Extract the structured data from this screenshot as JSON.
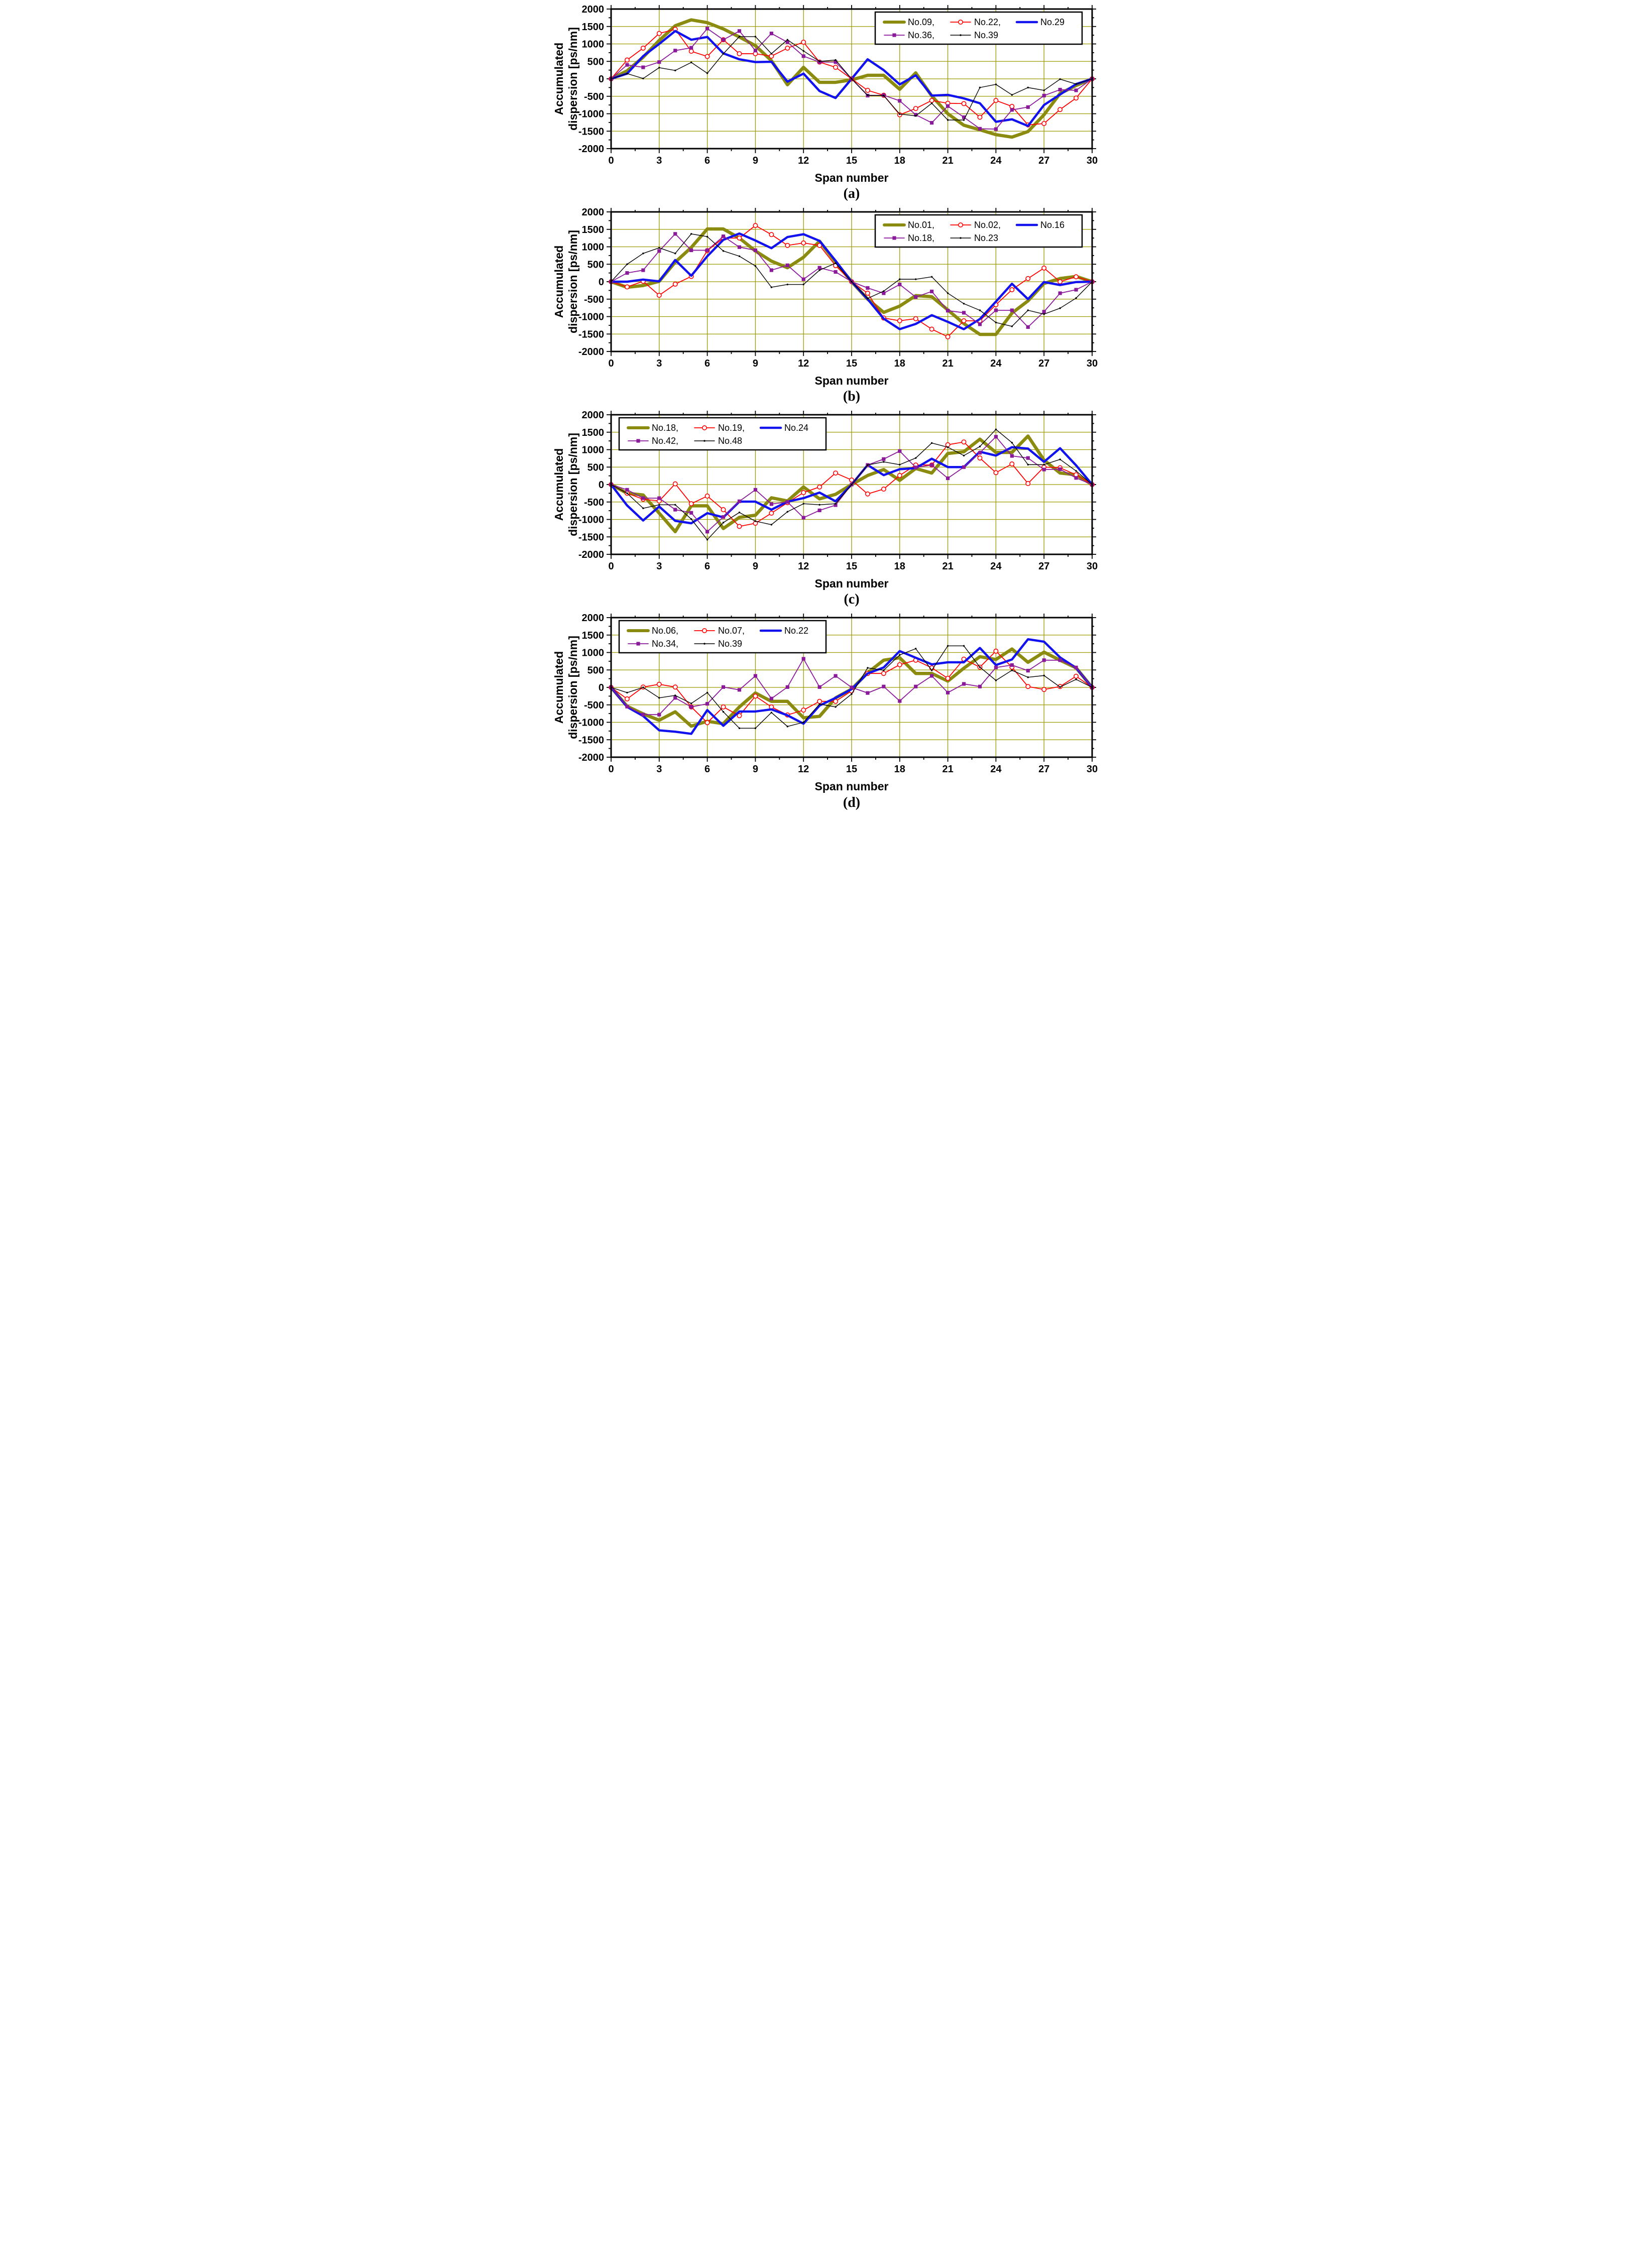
{
  "figure": {
    "ylabel_line1": "Accumulated",
    "ylabel_line2": "dispersion [ps/nm]",
    "xlabel": "Span number",
    "colors": {
      "olive": "#8b8b10",
      "red": "#ff0000",
      "blue": "#1212ef",
      "purple": "#8b1a9b",
      "black": "#000000",
      "grid": "#9b9b00",
      "frame": "#000000",
      "legend_bg": "#ffffff"
    },
    "axes": {
      "xlim": [
        0,
        30
      ],
      "ylim": [
        -2000,
        2000
      ],
      "xticks": [
        0,
        3,
        6,
        9,
        12,
        15,
        18,
        21,
        24,
        27,
        30
      ],
      "yticks": [
        2000,
        1500,
        1000,
        500,
        0,
        -500,
        -1000,
        -1500,
        -2000
      ],
      "x_minor_step": 1.5,
      "y_minor_step": 250,
      "grid": "on"
    }
  },
  "chart_data": [
    {
      "type": "line",
      "caption": "(a)",
      "legend_position": "right",
      "x": [
        0,
        1,
        2,
        3,
        4,
        5,
        6,
        7,
        8,
        9,
        10,
        11,
        12,
        13,
        14,
        15,
        16,
        17,
        18,
        19,
        20,
        21,
        22,
        23,
        24,
        25,
        26,
        27,
        28,
        29,
        30
      ],
      "series": [
        {
          "label": "No.09,",
          "color_key": "olive",
          "width": 6.5,
          "marker": "none",
          "values": [
            0,
            230,
            620,
            1100,
            1520,
            1690,
            1610,
            1430,
            1200,
            950,
            520,
            -170,
            330,
            -100,
            -100,
            -30,
            100,
            100,
            -300,
            170,
            -490,
            -1000,
            -1330,
            -1460,
            -1600,
            -1670,
            -1510,
            -1030,
            -420,
            -190,
            0
          ]
        },
        {
          "label": "No.22,",
          "color_key": "red",
          "width": 1.8,
          "marker": "circle-open",
          "values": [
            0,
            540,
            880,
            1300,
            1420,
            790,
            640,
            1120,
            720,
            720,
            650,
            880,
            1050,
            480,
            330,
            0,
            -330,
            -470,
            -1030,
            -850,
            -620,
            -700,
            -710,
            -1100,
            -620,
            -790,
            -1320,
            -1280,
            -880,
            -550,
            0
          ]
        },
        {
          "label": "No.29",
          "color_key": "blue",
          "width": 4.5,
          "marker": "none",
          "values": [
            0,
            150,
            650,
            1000,
            1370,
            1120,
            1200,
            730,
            560,
            480,
            490,
            -80,
            150,
            -350,
            -550,
            0,
            560,
            250,
            -160,
            100,
            -480,
            -460,
            -560,
            -700,
            -1230,
            -1160,
            -1350,
            -750,
            -450,
            -150,
            0
          ]
        },
        {
          "label": "No.36,",
          "color_key": "purple",
          "width": 1.8,
          "marker": "square",
          "values": [
            0,
            400,
            330,
            480,
            810,
            890,
            1440,
            1120,
            1370,
            810,
            1300,
            1050,
            650,
            480,
            480,
            0,
            -480,
            -470,
            -630,
            -1030,
            -1260,
            -780,
            -1100,
            -1430,
            -1440,
            -890,
            -810,
            -480,
            -310,
            -330,
            0
          ]
        },
        {
          "label": "No.39",
          "color_key": "black",
          "width": 1.4,
          "marker": "dot",
          "values": [
            0,
            150,
            10,
            320,
            240,
            470,
            160,
            720,
            1210,
            1210,
            720,
            1120,
            800,
            500,
            540,
            0,
            -470,
            -480,
            -1010,
            -1060,
            -700,
            -1180,
            -1180,
            -250,
            -160,
            -460,
            -250,
            -330,
            -10,
            -150,
            0
          ]
        }
      ]
    },
    {
      "type": "line",
      "caption": "(b)",
      "legend_position": "right",
      "x": [
        0,
        1,
        2,
        3,
        4,
        5,
        6,
        7,
        8,
        9,
        10,
        11,
        12,
        13,
        14,
        15,
        16,
        17,
        18,
        19,
        20,
        21,
        22,
        23,
        24,
        25,
        26,
        27,
        28,
        29,
        30
      ],
      "series": [
        {
          "label": "No.01,",
          "color_key": "olive",
          "width": 6.5,
          "marker": "none",
          "values": [
            0,
            -160,
            -110,
            10,
            560,
            980,
            1510,
            1510,
            1250,
            880,
            590,
            400,
            700,
            1160,
            560,
            0,
            -500,
            -880,
            -700,
            -400,
            -430,
            -810,
            -1200,
            -1510,
            -1510,
            -900,
            -550,
            -50,
            90,
            150,
            0
          ]
        },
        {
          "label": "No.02,",
          "color_key": "red",
          "width": 1.8,
          "marker": "circle-open",
          "values": [
            0,
            -150,
            10,
            -390,
            -70,
            150,
            890,
            1250,
            1250,
            1610,
            1350,
            1040,
            1110,
            1040,
            460,
            0,
            -330,
            -1040,
            -1120,
            -1060,
            -1360,
            -1580,
            -1120,
            -1120,
            -660,
            -230,
            90,
            390,
            0,
            140,
            0
          ]
        },
        {
          "label": "No.16",
          "color_key": "blue",
          "width": 4.5,
          "marker": "none",
          "values": [
            0,
            0,
            60,
            10,
            620,
            170,
            730,
            1200,
            1380,
            1180,
            960,
            1280,
            1360,
            1170,
            600,
            0,
            -500,
            -1060,
            -1360,
            -1210,
            -960,
            -1150,
            -1360,
            -1070,
            -570,
            -60,
            -500,
            -10,
            -95,
            -10,
            0
          ]
        },
        {
          "label": "No.18,",
          "color_key": "purple",
          "width": 1.8,
          "marker": "square",
          "values": [
            0,
            250,
            330,
            880,
            1370,
            900,
            900,
            1300,
            990,
            900,
            330,
            470,
            70,
            400,
            280,
            0,
            -180,
            -330,
            -80,
            -440,
            -280,
            -830,
            -890,
            -1220,
            -820,
            -820,
            -1300,
            -860,
            -330,
            -230,
            0
          ]
        },
        {
          "label": "No.23",
          "color_key": "black",
          "width": 1.4,
          "marker": "dot",
          "values": [
            0,
            500,
            810,
            970,
            810,
            1370,
            1290,
            880,
            730,
            450,
            -160,
            -80,
            -80,
            330,
            530,
            0,
            -480,
            -270,
            70,
            70,
            140,
            -330,
            -630,
            -820,
            -1170,
            -1280,
            -820,
            -930,
            -760,
            -470,
            0
          ]
        }
      ]
    },
    {
      "type": "line",
      "caption": "(c)",
      "legend_position": "left",
      "x": [
        0,
        1,
        2,
        3,
        4,
        5,
        6,
        7,
        8,
        9,
        10,
        11,
        12,
        13,
        14,
        15,
        16,
        17,
        18,
        19,
        20,
        21,
        22,
        23,
        24,
        25,
        26,
        27,
        28,
        29,
        30
      ],
      "series": [
        {
          "label": "No.18,",
          "color_key": "olive",
          "width": 6.5,
          "marker": "none",
          "values": [
            0,
            -250,
            -300,
            -820,
            -1350,
            -610,
            -610,
            -1260,
            -940,
            -880,
            -380,
            -470,
            -70,
            -410,
            -280,
            0,
            260,
            430,
            120,
            460,
            330,
            890,
            940,
            1300,
            920,
            920,
            1390,
            700,
            330,
            280,
            0
          ]
        },
        {
          "label": "No.19,",
          "color_key": "red",
          "width": 1.8,
          "marker": "circle-open",
          "values": [
            0,
            -250,
            -420,
            -470,
            20,
            -550,
            -330,
            -720,
            -1200,
            -1110,
            -820,
            -520,
            -230,
            -70,
            330,
            130,
            -270,
            -130,
            260,
            560,
            560,
            1140,
            1220,
            760,
            340,
            590,
            30,
            500,
            480,
            280,
            0
          ]
        },
        {
          "label": "No.24",
          "color_key": "blue",
          "width": 4.5,
          "marker": "none",
          "values": [
            0,
            -600,
            -1030,
            -630,
            -1040,
            -1110,
            -820,
            -940,
            -490,
            -490,
            -720,
            -490,
            -390,
            -230,
            -480,
            0,
            560,
            270,
            440,
            470,
            740,
            500,
            500,
            940,
            830,
            1070,
            1030,
            650,
            1040,
            550,
            0
          ]
        },
        {
          "label": "No.42,",
          "color_key": "purple",
          "width": 1.8,
          "marker": "square",
          "values": [
            0,
            -150,
            -390,
            -390,
            -720,
            -810,
            -1350,
            -930,
            -480,
            -150,
            -560,
            -500,
            -950,
            -740,
            -590,
            0,
            560,
            730,
            960,
            490,
            560,
            180,
            500,
            910,
            1370,
            820,
            760,
            430,
            440,
            190,
            0
          ]
        },
        {
          "label": "No.48",
          "color_key": "black",
          "width": 1.4,
          "marker": "dot",
          "values": [
            0,
            -250,
            -680,
            -580,
            -580,
            -990,
            -1580,
            -1090,
            -800,
            -1050,
            -1150,
            -780,
            -550,
            -580,
            -550,
            0,
            560,
            650,
            570,
            760,
            1190,
            1070,
            830,
            1090,
            1580,
            1200,
            570,
            570,
            720,
            390,
            0
          ]
        }
      ]
    },
    {
      "type": "line",
      "caption": "(d)",
      "legend_position": "left",
      "x": [
        0,
        1,
        2,
        3,
        4,
        5,
        6,
        7,
        8,
        9,
        10,
        11,
        12,
        13,
        14,
        15,
        16,
        17,
        18,
        19,
        20,
        21,
        22,
        23,
        24,
        25,
        26,
        27,
        28,
        29,
        30
      ],
      "series": [
        {
          "label": "No.06,",
          "color_key": "olive",
          "width": 6.5,
          "marker": "none",
          "values": [
            0,
            -540,
            -760,
            -940,
            -700,
            -1110,
            -970,
            -1040,
            -560,
            -160,
            -400,
            -400,
            -870,
            -830,
            -300,
            -50,
            420,
            780,
            850,
            400,
            400,
            180,
            550,
            880,
            800,
            1100,
            720,
            1010,
            780,
            560,
            0
          ]
        },
        {
          "label": "No.07,",
          "color_key": "red",
          "width": 1.8,
          "marker": "circle-open",
          "values": [
            0,
            -330,
            10,
            90,
            10,
            -560,
            -1010,
            -560,
            -810,
            -250,
            -560,
            -790,
            -650,
            -400,
            -400,
            -100,
            400,
            400,
            650,
            780,
            560,
            260,
            810,
            580,
            1040,
            580,
            25,
            -60,
            25,
            320,
            0
          ]
        },
        {
          "label": "No.22",
          "color_key": "blue",
          "width": 4.5,
          "marker": "none",
          "values": [
            0,
            -560,
            -820,
            -1230,
            -1270,
            -1330,
            -650,
            -1100,
            -690,
            -690,
            -630,
            -800,
            -1040,
            -520,
            -300,
            -50,
            400,
            570,
            1040,
            850,
            660,
            720,
            720,
            1130,
            640,
            800,
            1380,
            1310,
            860,
            560,
            0
          ]
        },
        {
          "label": "No.34,",
          "color_key": "purple",
          "width": 1.8,
          "marker": "square",
          "values": [
            0,
            -550,
            -780,
            -780,
            -300,
            -560,
            -470,
            10,
            -70,
            330,
            -320,
            10,
            820,
            10,
            330,
            0,
            -160,
            25,
            -390,
            25,
            330,
            -150,
            100,
            25,
            570,
            640,
            480,
            780,
            780,
            570,
            0
          ]
        },
        {
          "label": "No.39",
          "color_key": "black",
          "width": 1.4,
          "marker": "dot",
          "values": [
            0,
            -150,
            0,
            -300,
            -230,
            -460,
            -150,
            -700,
            -1170,
            -1170,
            -720,
            -1120,
            -1000,
            -480,
            -560,
            -190,
            560,
            490,
            930,
            1110,
            490,
            1190,
            1190,
            580,
            200,
            490,
            290,
            340,
            10,
            230,
            0
          ]
        }
      ]
    }
  ]
}
